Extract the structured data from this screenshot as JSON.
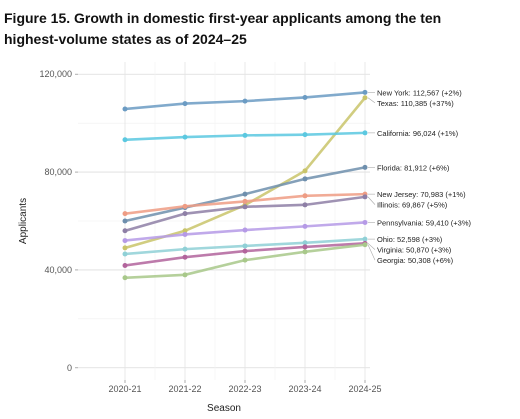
{
  "title": "Figure 15. Growth in domestic first-year applicants among the ten highest-volume states as of 2024–25",
  "chart_data": {
    "type": "line",
    "title": "Figure 15. Growth in domestic first-year applicants among the ten highest-volume states as of 2024–25",
    "xlabel": "Season",
    "ylabel": "Applicants",
    "categories": [
      "2020-21",
      "2021-22",
      "2022-23",
      "2023-24",
      "2024-25"
    ],
    "ylim": [
      -5000,
      125000
    ],
    "yticks": [
      0,
      40000,
      80000,
      120000
    ],
    "ytick_labels": [
      "0",
      "40,000",
      "80,000",
      "120,000"
    ],
    "grid": true,
    "legend": "none; series labels at line ends",
    "series": [
      {
        "name": "New York",
        "end_label": "New York: 112,567 (+2%)",
        "color": "#6b9bc3",
        "values": [
          105800,
          108000,
          109000,
          110500,
          112567
        ]
      },
      {
        "name": "Texas",
        "end_label": "Texas: 110,385 (+37%)",
        "color": "#c9c46a",
        "values": [
          49000,
          56000,
          66500,
          80500,
          110385
        ]
      },
      {
        "name": "California",
        "end_label": "California: 96,024 (+1%)",
        "color": "#5bc8e0",
        "values": [
          93200,
          94300,
          95000,
          95300,
          96024
        ]
      },
      {
        "name": "Florida",
        "end_label": "Florida: 81,912 (+6%)",
        "color": "#6e8fad",
        "values": [
          60000,
          65500,
          71000,
          77200,
          81912
        ]
      },
      {
        "name": "New Jersey",
        "end_label": "New Jersey: 70,983 (+1%)",
        "color": "#ee9c84",
        "values": [
          63000,
          66000,
          68000,
          70300,
          70983
        ]
      },
      {
        "name": "Illinois",
        "end_label": "Illinois: 69,867 (+5%)",
        "color": "#8e7fa6",
        "values": [
          56000,
          63000,
          65800,
          66600,
          69867
        ]
      },
      {
        "name": "Pennsylvania",
        "end_label": "Pennsylvania: 59,410 (+3%)",
        "color": "#b59ae6",
        "values": [
          52000,
          54500,
          56300,
          57800,
          59410
        ]
      },
      {
        "name": "Ohio",
        "end_label": "Ohio: 52,598 (+3%)",
        "color": "#8fd0d6",
        "values": [
          46500,
          48500,
          49800,
          51100,
          52598
        ]
      },
      {
        "name": "Virginia",
        "end_label": "Virginia: 50,870 (+3%)",
        "color": "#b2649c",
        "values": [
          41800,
          45200,
          47700,
          49400,
          50870
        ]
      },
      {
        "name": "Georgia",
        "end_label": "Georgia: 50,308 (+6%)",
        "color": "#a8c88a",
        "values": [
          36800,
          38000,
          44000,
          47400,
          50308
        ]
      }
    ]
  }
}
